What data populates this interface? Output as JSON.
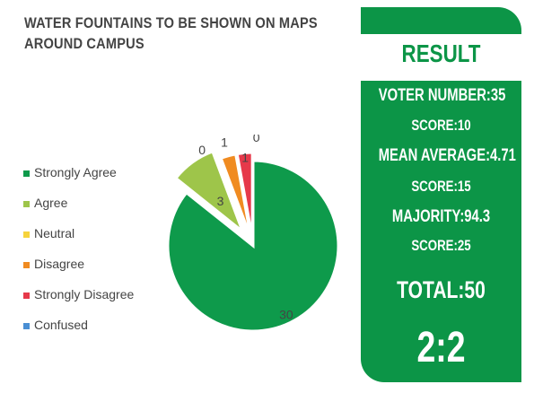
{
  "title_lines": [
    "WATER FOUNTAINS TO BE SHOWN ON MAPS",
    "AROUND CAMPUS"
  ],
  "chart_data": {
    "type": "pie",
    "title": "WATER FOUNTAINS TO BE SHOWN ON MAPS AROUND CAMPUS",
    "categories": [
      "Strongly Agree",
      "Agree",
      "Neutral",
      "Disagree",
      "Strongly Disagree",
      "Confused"
    ],
    "values": [
      30,
      3,
      0,
      1,
      1,
      0
    ],
    "labels": [
      "30",
      "3",
      "0",
      "1",
      "1",
      "0"
    ],
    "colors": [
      "#0e9a4b",
      "#9ec54a",
      "#f6d33c",
      "#f08b21",
      "#e6394a",
      "#4a8fd4"
    ],
    "exploded": true,
    "legend_position": "left"
  },
  "result": {
    "title": "RESULT",
    "voter_number": "VOTER NUMBER:35",
    "score1": "SCORE:10",
    "mean_average": "MEAN AVERAGE:4.71",
    "score2": "SCORE:15",
    "majority": "MAJORITY:94.3",
    "score3": "SCORE:25",
    "total": "TOTAL:50",
    "ratio": "2:2"
  }
}
